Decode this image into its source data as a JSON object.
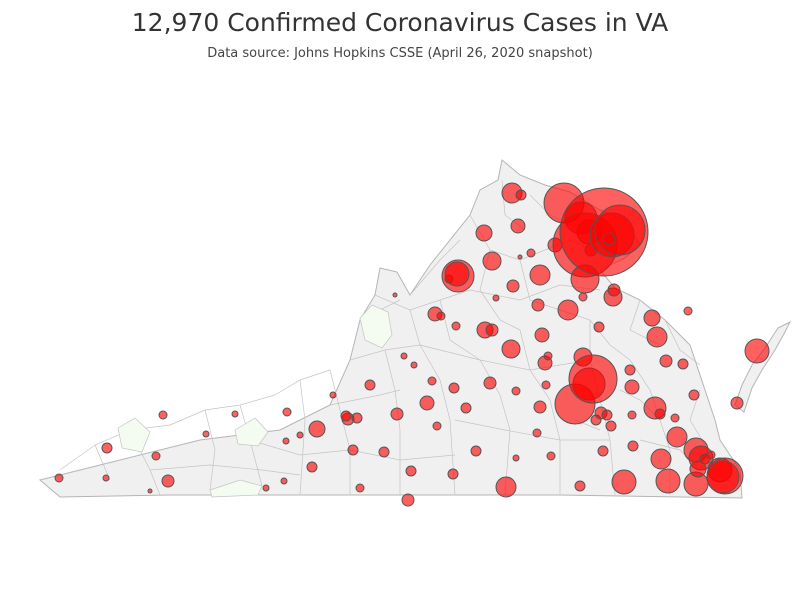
{
  "title": "12,970 Confirmed Coronavirus Cases in VA",
  "subtitle": "Data source: Johns Hopkins CSSE (April 26, 2020 snapshot)",
  "colors": {
    "background": "#ffffff",
    "land": "#f0f0f0",
    "county_border": "#b5b5b5",
    "no_cases": "#f4fbf1",
    "bubble_fill": "#ff0000",
    "bubble_stroke": "#555555",
    "title": "#333333"
  },
  "map": {
    "region": "Virginia",
    "units": "counties and independent cities",
    "symbol": "proportional circles, semi-transparent red",
    "case_circles_shown": 112
  }
}
